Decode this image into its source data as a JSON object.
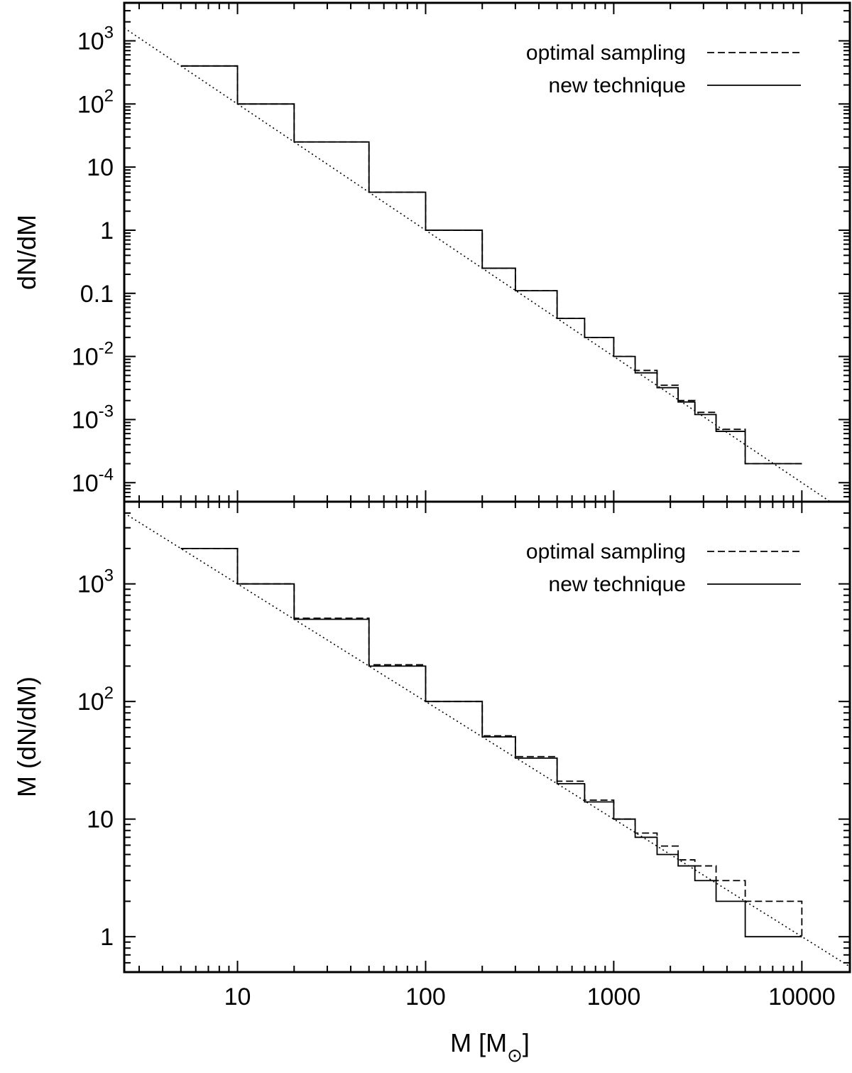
{
  "chart_data": [
    {
      "panel": "top",
      "type": "line",
      "ylabel": "dN/dM",
      "xscale": "log",
      "yscale": "log",
      "xlim": [
        2.5,
        18000
      ],
      "ylim": [
        5e-05,
        4000
      ],
      "yticks": [
        {
          "value": 0.0001,
          "base": "10",
          "exp": "-4"
        },
        {
          "value": 0.001,
          "base": "10",
          "exp": "-3"
        },
        {
          "value": 0.01,
          "base": "10",
          "exp": "-2"
        },
        {
          "value": 0.1,
          "base": "0.1",
          "exp": ""
        },
        {
          "value": 1,
          "base": "1",
          "exp": ""
        },
        {
          "value": 10,
          "base": "10",
          "exp": ""
        },
        {
          "value": 100,
          "base": "10",
          "exp": "2"
        },
        {
          "value": 1000,
          "base": "10",
          "exp": "3"
        }
      ],
      "legend_position": "top-right",
      "series": [
        {
          "name": "optimal sampling",
          "style": "dashed",
          "x": [
            5,
            10,
            20,
            50,
            100,
            200,
            300,
            500,
            700,
            1000,
            1300,
            1700,
            2200,
            2700,
            3500,
            5000,
            10000
          ],
          "y": [
            400,
            100,
            25,
            4,
            1,
            0.25,
            0.11,
            0.04,
            0.02,
            0.01,
            0.006,
            0.0035,
            0.002,
            0.0013,
            0.0007,
            0.0002,
            0.0002
          ]
        },
        {
          "name": "new technique",
          "style": "solid",
          "x": [
            5,
            10,
            20,
            50,
            100,
            200,
            300,
            500,
            700,
            1000,
            1300,
            1700,
            2200,
            2700,
            3500,
            5000,
            10000
          ],
          "y": [
            400,
            100,
            25,
            4,
            1,
            0.25,
            0.11,
            0.04,
            0.02,
            0.01,
            0.0055,
            0.0032,
            0.0019,
            0.0012,
            0.00065,
            0.0002,
            0.0002
          ]
        },
        {
          "name": "",
          "style": "dotted",
          "x": [
            2.5,
            18000
          ],
          "y": [
            1600,
            3.09e-05
          ]
        }
      ]
    },
    {
      "panel": "bottom",
      "type": "line",
      "xlabel": "M [M",
      "xlabel_symbol": "⊙",
      "xlabel_suffix": "]",
      "ylabel": "M (dN/dM)",
      "xscale": "log",
      "yscale": "log",
      "xlim": [
        2.5,
        18000
      ],
      "ylim": [
        0.5,
        5000
      ],
      "xticks": [
        {
          "value": 10,
          "label": "10"
        },
        {
          "value": 100,
          "label": "100"
        },
        {
          "value": 1000,
          "label": "1000"
        },
        {
          "value": 10000,
          "label": "10000"
        }
      ],
      "yticks": [
        {
          "value": 1,
          "base": "1",
          "exp": ""
        },
        {
          "value": 10,
          "base": "10",
          "exp": ""
        },
        {
          "value": 100,
          "base": "10",
          "exp": "2"
        },
        {
          "value": 1000,
          "base": "10",
          "exp": "3"
        }
      ],
      "legend_position": "top-right",
      "series": [
        {
          "name": "optimal sampling",
          "style": "dashed",
          "x": [
            5,
            10,
            20,
            50,
            100,
            200,
            300,
            500,
            700,
            1000,
            1300,
            1700,
            2200,
            2700,
            3500,
            5000,
            10000
          ],
          "y": [
            2000,
            1000,
            510,
            205,
            100,
            51,
            34,
            21,
            14.5,
            10,
            7.6,
            5.9,
            4.5,
            4,
            3,
            2,
            1
          ]
        },
        {
          "name": "new technique",
          "style": "solid",
          "x": [
            5,
            10,
            20,
            50,
            100,
            200,
            300,
            500,
            700,
            1000,
            1300,
            1700,
            2200,
            2700,
            3500,
            5000,
            10000
          ],
          "y": [
            2000,
            1000,
            500,
            200,
            100,
            50,
            33,
            20,
            14,
            10,
            7,
            5,
            4,
            3,
            2,
            1,
            1
          ]
        },
        {
          "name": "",
          "style": "dotted",
          "x": [
            2.5,
            18000
          ],
          "y": [
            4000,
            0.556
          ]
        }
      ]
    }
  ]
}
